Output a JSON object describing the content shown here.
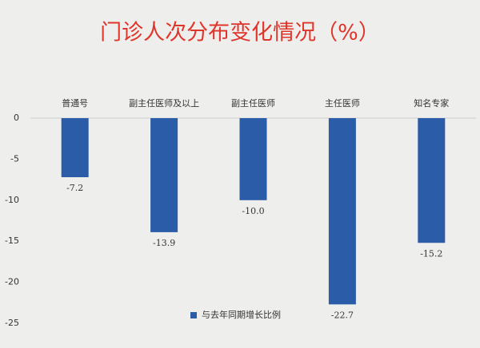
{
  "chart_data": {
    "type": "bar",
    "title": "门诊人次分布变化情况（%）",
    "categories": [
      "普通号",
      "副主任医师及以上",
      "副主任医师",
      "主任医师",
      "知名专家"
    ],
    "series": [
      {
        "name": "与去年同期增长比例",
        "color": "#2b5ca8",
        "values": [
          -7.2,
          -13.9,
          -10.0,
          -22.7,
          -15.2
        ],
        "value_labels": [
          "-7.2",
          "-13.9",
          "-10.0",
          "-22.7",
          "-15.2"
        ]
      }
    ],
    "ylim": [
      -25,
      0
    ],
    "yticks": [
      0,
      -5,
      -10,
      -15,
      -20,
      -25
    ],
    "legend": "bottom"
  }
}
